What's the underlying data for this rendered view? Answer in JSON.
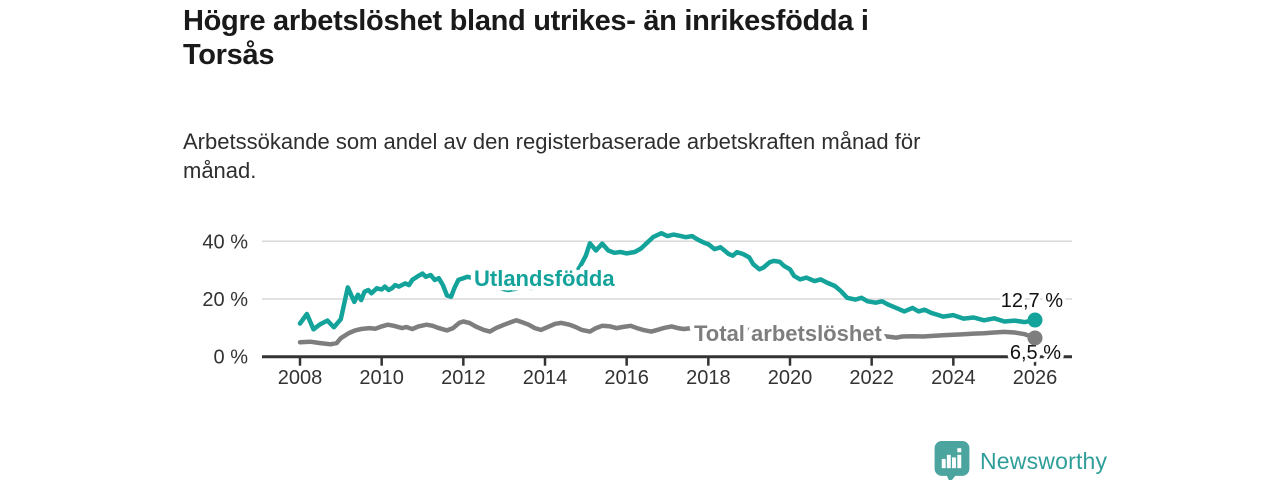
{
  "header": {
    "title_lines": [
      "Högre arbetslöshet bland utrikes- än inrikesfödda i",
      "Torsås"
    ],
    "subtitle_lines": [
      "Arbetssökande som andel av den registerbaserade arbetskraften månad för",
      "månad."
    ]
  },
  "footer": {
    "brand": "Newsworthy",
    "brand_text_color": "#2f9e99",
    "brand_icon_color": "#4ba49e"
  },
  "chart_data": {
    "type": "line",
    "title": "Högre arbetslöshet bland utrikes- än inrikesfödda i Torsås",
    "subtitle": "Arbetssökande som andel av den registerbaserade arbetskraften månad för månad.",
    "unit": "%",
    "xlabel": "",
    "ylabel": "",
    "xlim": [
      2007.1,
      2026.9
    ],
    "ylim": [
      0,
      45
    ],
    "x_ticks": [
      2008,
      2010,
      2012,
      2014,
      2016,
      2018,
      2020,
      2022,
      2024,
      2026
    ],
    "y_ticks": [
      0,
      20,
      40
    ],
    "y_tick_labels": [
      "0 %",
      "20 %",
      "40 %"
    ],
    "grid": "horizontal",
    "legend_position": "inline-labels-on-lines",
    "axis_color": "#333333",
    "grid_color": "#d9d9d9",
    "value_label_color": "#111111",
    "series": [
      {
        "name": "Utlandsfödda",
        "color": "#14a39a",
        "end_value": 12.7,
        "end_label": "12,7 %",
        "points": [
          [
            2008.0,
            11.5
          ],
          [
            2008.17,
            14.8
          ],
          [
            2008.33,
            9.5
          ],
          [
            2008.5,
            11.3
          ],
          [
            2008.67,
            12.5
          ],
          [
            2008.83,
            10.2
          ],
          [
            2009.0,
            13.0
          ],
          [
            2009.17,
            24.0
          ],
          [
            2009.33,
            19.0
          ],
          [
            2009.42,
            21.5
          ],
          [
            2009.5,
            19.6
          ],
          [
            2009.58,
            22.5
          ],
          [
            2009.67,
            23.1
          ],
          [
            2009.75,
            22.0
          ],
          [
            2009.88,
            23.7
          ],
          [
            2010.0,
            23.3
          ],
          [
            2010.08,
            24.3
          ],
          [
            2010.17,
            23.1
          ],
          [
            2010.25,
            23.7
          ],
          [
            2010.33,
            24.8
          ],
          [
            2010.42,
            24.3
          ],
          [
            2010.58,
            25.4
          ],
          [
            2010.67,
            24.8
          ],
          [
            2010.75,
            26.6
          ],
          [
            2010.9,
            28.0
          ],
          [
            2011.0,
            28.8
          ],
          [
            2011.08,
            27.7
          ],
          [
            2011.2,
            28.3
          ],
          [
            2011.3,
            26.6
          ],
          [
            2011.4,
            27.2
          ],
          [
            2011.5,
            24.8
          ],
          [
            2011.6,
            21.2
          ],
          [
            2011.7,
            20.8
          ],
          [
            2011.78,
            23.7
          ],
          [
            2011.88,
            26.6
          ],
          [
            2012.0,
            27.2
          ],
          [
            2012.1,
            27.7
          ],
          [
            2012.25,
            27.2
          ],
          [
            2012.4,
            26.0
          ],
          [
            2012.6,
            24.8
          ],
          [
            2012.75,
            24.3
          ],
          [
            2012.9,
            23.7
          ],
          [
            2013.1,
            23.1
          ],
          [
            2013.3,
            23.6
          ],
          [
            2013.5,
            24.1
          ],
          [
            2013.7,
            23.8
          ],
          [
            2013.9,
            24.3
          ],
          [
            2014.1,
            24.6
          ],
          [
            2014.3,
            25.2
          ],
          [
            2014.5,
            26.2
          ],
          [
            2014.7,
            28.0
          ],
          [
            2014.85,
            31.0
          ],
          [
            2015.0,
            35.0
          ],
          [
            2015.1,
            39.3
          ],
          [
            2015.25,
            36.8
          ],
          [
            2015.4,
            39.2
          ],
          [
            2015.55,
            36.8
          ],
          [
            2015.7,
            36.0
          ],
          [
            2015.85,
            36.3
          ],
          [
            2016.0,
            35.8
          ],
          [
            2016.2,
            36.3
          ],
          [
            2016.35,
            37.5
          ],
          [
            2016.5,
            39.5
          ],
          [
            2016.65,
            41.5
          ],
          [
            2016.85,
            42.8
          ],
          [
            2017.0,
            41.8
          ],
          [
            2017.15,
            42.3
          ],
          [
            2017.3,
            41.9
          ],
          [
            2017.45,
            41.4
          ],
          [
            2017.6,
            41.8
          ],
          [
            2017.75,
            40.5
          ],
          [
            2017.9,
            39.5
          ],
          [
            2018.0,
            39.0
          ],
          [
            2018.15,
            37.3
          ],
          [
            2018.3,
            37.9
          ],
          [
            2018.5,
            35.6
          ],
          [
            2018.6,
            35.0
          ],
          [
            2018.7,
            36.2
          ],
          [
            2018.85,
            35.6
          ],
          [
            2019.0,
            34.4
          ],
          [
            2019.1,
            32.1
          ],
          [
            2019.25,
            30.3
          ],
          [
            2019.35,
            30.9
          ],
          [
            2019.5,
            32.7
          ],
          [
            2019.6,
            33.2
          ],
          [
            2019.75,
            32.9
          ],
          [
            2019.85,
            31.5
          ],
          [
            2020.0,
            30.3
          ],
          [
            2020.1,
            28.0
          ],
          [
            2020.25,
            26.8
          ],
          [
            2020.4,
            27.4
          ],
          [
            2020.6,
            26.2
          ],
          [
            2020.75,
            26.8
          ],
          [
            2020.9,
            25.7
          ],
          [
            2021.1,
            24.5
          ],
          [
            2021.25,
            22.7
          ],
          [
            2021.4,
            20.4
          ],
          [
            2021.6,
            19.8
          ],
          [
            2021.75,
            20.4
          ],
          [
            2021.9,
            19.2
          ],
          [
            2022.1,
            18.7
          ],
          [
            2022.25,
            19.2
          ],
          [
            2022.4,
            18.1
          ],
          [
            2022.6,
            16.9
          ],
          [
            2022.8,
            15.7
          ],
          [
            2023.0,
            16.9
          ],
          [
            2023.15,
            15.7
          ],
          [
            2023.3,
            16.3
          ],
          [
            2023.45,
            15.2
          ],
          [
            2023.6,
            14.6
          ],
          [
            2023.75,
            13.9
          ],
          [
            2024.0,
            14.4
          ],
          [
            2024.25,
            13.2
          ],
          [
            2024.5,
            13.6
          ],
          [
            2024.75,
            12.6
          ],
          [
            2025.0,
            13.3
          ],
          [
            2025.25,
            12.2
          ],
          [
            2025.5,
            12.5
          ],
          [
            2025.75,
            12.0
          ],
          [
            2026.0,
            12.7
          ]
        ]
      },
      {
        "name": "Total arbetslöshet",
        "color": "#7e7e7e",
        "end_value": 6.5,
        "end_label": "6,5 %",
        "points": [
          [
            2008.0,
            5.0
          ],
          [
            2008.25,
            5.2
          ],
          [
            2008.5,
            4.7
          ],
          [
            2008.75,
            4.3
          ],
          [
            2008.9,
            4.7
          ],
          [
            2009.0,
            6.4
          ],
          [
            2009.2,
            8.2
          ],
          [
            2009.35,
            9.1
          ],
          [
            2009.5,
            9.6
          ],
          [
            2009.7,
            9.9
          ],
          [
            2009.85,
            9.7
          ],
          [
            2010.0,
            10.5
          ],
          [
            2010.15,
            11.1
          ],
          [
            2010.3,
            10.7
          ],
          [
            2010.5,
            9.9
          ],
          [
            2010.6,
            10.3
          ],
          [
            2010.75,
            9.6
          ],
          [
            2010.9,
            10.5
          ],
          [
            2011.1,
            11.1
          ],
          [
            2011.25,
            10.7
          ],
          [
            2011.4,
            9.9
          ],
          [
            2011.6,
            9.1
          ],
          [
            2011.75,
            9.9
          ],
          [
            2011.9,
            11.7
          ],
          [
            2012.0,
            12.2
          ],
          [
            2012.15,
            11.7
          ],
          [
            2012.3,
            10.5
          ],
          [
            2012.5,
            9.3
          ],
          [
            2012.65,
            8.7
          ],
          [
            2012.8,
            9.9
          ],
          [
            2013.0,
            11.1
          ],
          [
            2013.15,
            11.9
          ],
          [
            2013.3,
            12.6
          ],
          [
            2013.45,
            11.9
          ],
          [
            2013.6,
            11.1
          ],
          [
            2013.75,
            9.9
          ],
          [
            2013.9,
            9.3
          ],
          [
            2014.1,
            10.5
          ],
          [
            2014.25,
            11.4
          ],
          [
            2014.4,
            11.7
          ],
          [
            2014.6,
            11.1
          ],
          [
            2014.75,
            10.3
          ],
          [
            2014.9,
            9.3
          ],
          [
            2015.1,
            8.7
          ],
          [
            2015.25,
            9.9
          ],
          [
            2015.4,
            10.7
          ],
          [
            2015.6,
            10.5
          ],
          [
            2015.75,
            9.9
          ],
          [
            2015.9,
            10.3
          ],
          [
            2016.1,
            10.7
          ],
          [
            2016.25,
            9.9
          ],
          [
            2016.4,
            9.3
          ],
          [
            2016.6,
            8.7
          ],
          [
            2016.75,
            9.3
          ],
          [
            2016.9,
            9.9
          ],
          [
            2017.1,
            10.5
          ],
          [
            2017.25,
            9.9
          ],
          [
            2017.4,
            9.6
          ],
          [
            2017.6,
            9.9
          ],
          [
            2017.75,
            9.3
          ],
          [
            2018.0,
            9.6
          ],
          [
            2018.25,
            9.9
          ],
          [
            2018.5,
            9.4
          ],
          [
            2018.75,
            9.0
          ],
          [
            2019.0,
            9.3
          ],
          [
            2019.25,
            9.6
          ],
          [
            2019.5,
            9.2
          ],
          [
            2019.75,
            8.8
          ],
          [
            2020.0,
            9.4
          ],
          [
            2020.25,
            9.8
          ],
          [
            2020.5,
            9.5
          ],
          [
            2020.75,
            9.0
          ],
          [
            2021.0,
            8.6
          ],
          [
            2021.25,
            8.3
          ],
          [
            2021.5,
            8.0
          ],
          [
            2021.75,
            7.8
          ],
          [
            2022.0,
            7.5
          ],
          [
            2022.25,
            7.2
          ],
          [
            2022.5,
            6.8
          ],
          [
            2022.6,
            6.6
          ],
          [
            2022.75,
            7.0
          ],
          [
            2023.0,
            7.1
          ],
          [
            2023.25,
            7.0
          ],
          [
            2023.5,
            7.2
          ],
          [
            2023.75,
            7.4
          ],
          [
            2024.0,
            7.6
          ],
          [
            2024.25,
            7.8
          ],
          [
            2024.5,
            8.0
          ],
          [
            2024.75,
            8.1
          ],
          [
            2025.0,
            8.4
          ],
          [
            2025.25,
            8.6
          ],
          [
            2025.5,
            8.4
          ],
          [
            2025.75,
            7.8
          ],
          [
            2026.0,
            6.5
          ]
        ]
      }
    ]
  }
}
